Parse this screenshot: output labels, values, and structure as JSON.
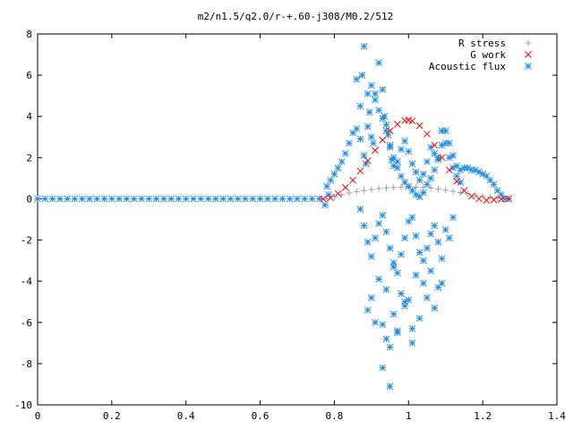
{
  "chart_data": {
    "type": "scatter",
    "title": "m2/n1.5/q2.0/r-+.60-j308/M0.2/512",
    "xlabel": "",
    "ylabel": "",
    "xlim": [
      0,
      1.4
    ],
    "ylim": [
      -10,
      8
    ],
    "xticks": [
      0,
      0.2,
      0.4,
      0.6,
      0.8,
      1,
      1.2,
      1.4
    ],
    "yticks": [
      -10,
      -8,
      -6,
      -4,
      -2,
      0,
      2,
      4,
      6,
      8
    ],
    "xtick_labels": [
      "0",
      "0.2",
      "0.4",
      "0.6",
      "0.8",
      "1",
      "1.2",
      "1.4"
    ],
    "ytick_labels": [
      "-10",
      "-8",
      "-6",
      "-4",
      "-2",
      "0",
      "2",
      "4",
      "6",
      "8"
    ],
    "grid": false,
    "legend_position": "top-right",
    "series": [
      {
        "name": "R stress",
        "marker": "plus",
        "color": "#a0a0a0",
        "x": [
          0.78,
          0.8,
          0.82,
          0.84,
          0.86,
          0.88,
          0.9,
          0.92,
          0.94,
          0.96,
          0.98,
          1.0,
          1.02,
          1.04,
          1.06,
          1.08,
          1.1,
          1.12,
          1.14,
          1.16,
          1.18,
          1.2,
          1.22,
          1.24,
          1.26,
          1.27
        ],
        "y": [
          0.0,
          0.1,
          0.2,
          0.28,
          0.35,
          0.4,
          0.45,
          0.5,
          0.53,
          0.55,
          0.56,
          0.57,
          0.56,
          0.55,
          0.52,
          0.48,
          0.42,
          0.36,
          0.3,
          0.24,
          0.18,
          0.12,
          0.07,
          0.03,
          0.01,
          0.0
        ]
      },
      {
        "name": "G work",
        "marker": "cross",
        "color": "#ff0000",
        "x": [
          0.77,
          0.79,
          0.81,
          0.83,
          0.85,
          0.87,
          0.89,
          0.91,
          0.93,
          0.95,
          0.97,
          0.99,
          1.0,
          1.01,
          1.03,
          1.05,
          1.07,
          1.09,
          1.11,
          1.13,
          1.15,
          1.17,
          1.19,
          1.21,
          1.23,
          1.25,
          1.27
        ],
        "y": [
          0.0,
          0.05,
          0.25,
          0.55,
          0.9,
          1.35,
          1.85,
          2.35,
          2.85,
          3.3,
          3.62,
          3.8,
          3.82,
          3.78,
          3.55,
          3.15,
          2.6,
          2.0,
          1.4,
          0.85,
          0.4,
          0.12,
          0.0,
          -0.08,
          -0.05,
          -0.02,
          0.0
        ]
      },
      {
        "name": "Acoustic flux",
        "marker": "star",
        "color": "#1e8ce6",
        "x": [
          0.775,
          0.78,
          0.785,
          0.79,
          0.8,
          0.81,
          0.82,
          0.83,
          0.84,
          0.85,
          0.86,
          0.87,
          0.88,
          0.885,
          0.89,
          0.9,
          0.91,
          0.92,
          0.93,
          0.94,
          0.95,
          0.96,
          0.97,
          0.98,
          0.99,
          1.0,
          1.01,
          1.02,
          1.03,
          1.04,
          1.05,
          1.06,
          1.07,
          1.08,
          1.09,
          1.1,
          1.11,
          1.12,
          1.13,
          1.14,
          1.15,
          1.16,
          1.17,
          1.18,
          1.19,
          1.2,
          1.21,
          1.22,
          1.23,
          1.24,
          1.25,
          1.26,
          1.27,
          0.86,
          0.87,
          0.875,
          0.88,
          0.89,
          0.895,
          0.9,
          0.905,
          0.91,
          0.92,
          0.93,
          0.935,
          0.94,
          0.945,
          0.95,
          0.955,
          0.96,
          0.97,
          0.98,
          0.99,
          1.0,
          1.01,
          1.02,
          1.03,
          1.04,
          1.05,
          1.06,
          1.07,
          1.08,
          1.09,
          1.1,
          1.11,
          1.12,
          1.13,
          1.14,
          0.87,
          0.88,
          0.89,
          0.9,
          0.91,
          0.92,
          0.93,
          0.94,
          0.95,
          0.96,
          0.97,
          0.98,
          0.99,
          1.0,
          1.01,
          1.02,
          1.03,
          1.04,
          1.05,
          1.06,
          1.07,
          1.08,
          1.09,
          1.1,
          1.11,
          1.12,
          0.9,
          0.92,
          0.94,
          0.96,
          0.98,
          1.0,
          1.02,
          1.04,
          1.06,
          1.08,
          0.93,
          0.94,
          0.95,
          0.96,
          0.97,
          0.99,
          1.01,
          1.03,
          1.05,
          1.07,
          1.09,
          0.89,
          0.91,
          0.93,
          0.95,
          0.97,
          0.99,
          1.01
        ],
        "y": [
          -0.3,
          0.6,
          0.2,
          0.9,
          1.2,
          1.5,
          1.8,
          2.2,
          2.7,
          3.2,
          3.4,
          2.9,
          2.1,
          1.7,
          3.5,
          5.5,
          5.1,
          4.3,
          3.9,
          3.3,
          2.6,
          2.0,
          1.5,
          1.1,
          0.8,
          0.6,
          0.4,
          0.2,
          0.1,
          0.3,
          0.7,
          1.0,
          1.4,
          2.0,
          2.6,
          3.3,
          2.7,
          2.1,
          1.6,
          1.4,
          1.5,
          1.5,
          1.4,
          1.4,
          1.3,
          1.2,
          1.1,
          0.9,
          0.7,
          0.4,
          0.2,
          0.0,
          0.0,
          5.8,
          4.5,
          6.0,
          7.4,
          5.1,
          4.2,
          3.0,
          2.7,
          4.8,
          6.6,
          5.3,
          4.0,
          3.6,
          3.1,
          2.5,
          1.9,
          1.6,
          1.8,
          2.4,
          2.8,
          2.3,
          1.7,
          1.3,
          0.9,
          1.2,
          1.8,
          2.5,
          2.2,
          1.9,
          3.3,
          2.7,
          2.0,
          1.5,
          1.1,
          0.8,
          -0.5,
          -1.3,
          -2.1,
          -2.8,
          -1.9,
          -1.2,
          -0.8,
          -1.6,
          -2.4,
          -3.1,
          -3.6,
          -2.7,
          -1.9,
          -1.1,
          -0.9,
          -1.8,
          -2.6,
          -3.0,
          -2.4,
          -1.7,
          -1.3,
          -2.1,
          -2.9,
          -1.5,
          -1.9,
          -0.9,
          -4.8,
          -3.9,
          -4.4,
          -3.3,
          -4.6,
          -4.9,
          -3.7,
          -4.1,
          -3.5,
          -4.3,
          -6.1,
          -6.8,
          -7.2,
          -5.6,
          -6.5,
          -5.0,
          -6.3,
          -5.8,
          -4.8,
          -5.3,
          -4.1,
          -5.4,
          -6.0,
          -8.2,
          -9.1,
          -6.4,
          -5.2,
          -7.0
        ]
      },
      {
        "name": "",
        "marker": "star",
        "color": "#1e8ce6",
        "x": [
          0.0,
          0.02,
          0.04,
          0.06,
          0.08,
          0.1,
          0.12,
          0.14,
          0.16,
          0.18,
          0.2,
          0.22,
          0.24,
          0.26,
          0.28,
          0.3,
          0.32,
          0.34,
          0.36,
          0.38,
          0.4,
          0.42,
          0.44,
          0.46,
          0.48,
          0.5,
          0.52,
          0.54,
          0.56,
          0.58,
          0.6,
          0.62,
          0.64,
          0.66,
          0.68,
          0.7,
          0.72,
          0.74,
          0.76
        ],
        "y": [
          0,
          0,
          0,
          0,
          0,
          0,
          0,
          0,
          0,
          0,
          0,
          0,
          0,
          0,
          0,
          0,
          0,
          0,
          0,
          0,
          0,
          0,
          0,
          0,
          0,
          0,
          0,
          0,
          0,
          0,
          0,
          0,
          0,
          0,
          0,
          0,
          0,
          0,
          0
        ]
      }
    ]
  }
}
